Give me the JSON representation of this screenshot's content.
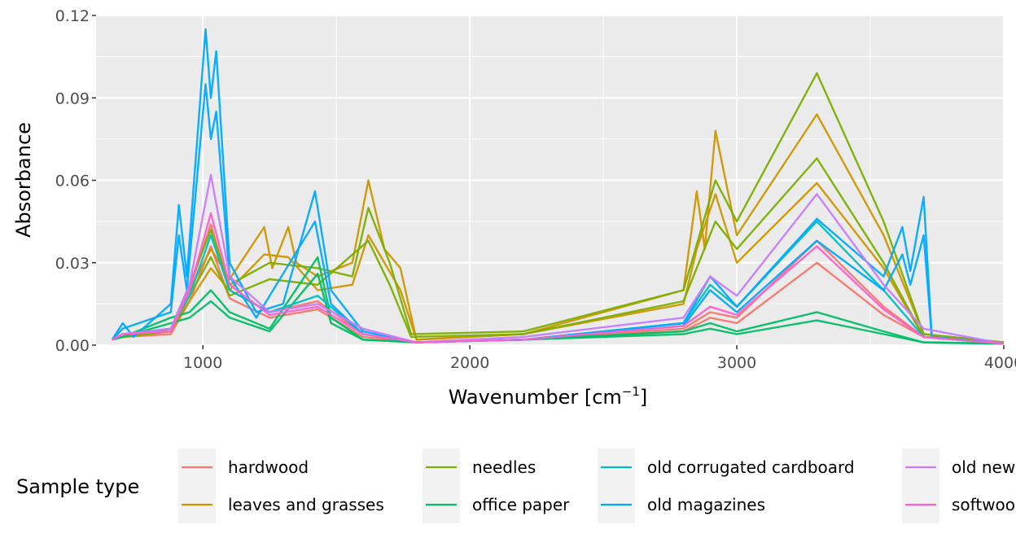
{
  "chart_data": {
    "type": "line",
    "xlabel_main": "Wavenumber [cm",
    "xlabel_sup": "−1",
    "xlabel_end": "]",
    "ylabel": "Absorbance",
    "xlim": [
      600,
      4000
    ],
    "ylim": [
      0,
      0.12
    ],
    "x_ticks": [
      1000,
      2000,
      3000,
      4000
    ],
    "x_tick_labels": [
      "1000",
      "2000",
      "3000",
      "4000"
    ],
    "y_ticks": [
      0,
      0.03,
      0.06,
      0.09,
      0.12
    ],
    "y_tick_labels": [
      "0.00",
      "0.03",
      "0.06",
      "0.09",
      "0.12"
    ],
    "grid": true,
    "legend": {
      "title": "Sample type",
      "placement": "bottom",
      "entries": [
        {
          "label": "hardwood",
          "color": "#F8766D"
        },
        {
          "label": "leaves and grasses",
          "color": "#CD9600"
        },
        {
          "label": "needles",
          "color": "#7CAE00"
        },
        {
          "label": "office paper",
          "color": "#00BE67"
        },
        {
          "label": "old corrugated cardboard",
          "color": "#00BFC4"
        },
        {
          "label": "old magazines",
          "color": "#00A9FF"
        },
        {
          "label": "old newspaper",
          "color": "#C77CFF"
        },
        {
          "label": "softwood",
          "color": "#FF61CC"
        }
      ]
    },
    "series": [
      {
        "color": "#F8766D",
        "values": [
          [
            660,
            0.002
          ],
          [
            700,
            0.004
          ],
          [
            880,
            0.005
          ],
          [
            950,
            0.02
          ],
          [
            1030,
            0.044
          ],
          [
            1100,
            0.02
          ],
          [
            1250,
            0.012
          ],
          [
            1430,
            0.016
          ],
          [
            1600,
            0.004
          ],
          [
            1800,
            0.001
          ],
          [
            2200,
            0.002
          ],
          [
            2800,
            0.006
          ],
          [
            2900,
            0.012
          ],
          [
            3000,
            0.01
          ],
          [
            3300,
            0.038
          ],
          [
            3550,
            0.014
          ],
          [
            3700,
            0.003
          ],
          [
            4000,
            0.0005
          ]
        ]
      },
      {
        "color": "#F8766D",
        "values": [
          [
            660,
            0.002
          ],
          [
            700,
            0.003
          ],
          [
            880,
            0.004
          ],
          [
            950,
            0.016
          ],
          [
            1030,
            0.036
          ],
          [
            1100,
            0.017
          ],
          [
            1250,
            0.01
          ],
          [
            1430,
            0.013
          ],
          [
            1600,
            0.003
          ],
          [
            1800,
            0.001
          ],
          [
            2200,
            0.002
          ],
          [
            2800,
            0.005
          ],
          [
            2900,
            0.01
          ],
          [
            3000,
            0.008
          ],
          [
            3300,
            0.03
          ],
          [
            3550,
            0.011
          ],
          [
            3700,
            0.003
          ],
          [
            4000,
            0.0005
          ]
        ]
      },
      {
        "color": "#CD9600",
        "values": [
          [
            660,
            0.002
          ],
          [
            700,
            0.003
          ],
          [
            880,
            0.006
          ],
          [
            950,
            0.02
          ],
          [
            1030,
            0.035
          ],
          [
            1100,
            0.024
          ],
          [
            1230,
            0.043
          ],
          [
            1260,
            0.028
          ],
          [
            1320,
            0.043
          ],
          [
            1350,
            0.03
          ],
          [
            1430,
            0.025
          ],
          [
            1560,
            0.03
          ],
          [
            1620,
            0.06
          ],
          [
            1680,
            0.035
          ],
          [
            1740,
            0.028
          ],
          [
            1800,
            0.002
          ],
          [
            2200,
            0.004
          ],
          [
            2800,
            0.02
          ],
          [
            2850,
            0.056
          ],
          [
            2880,
            0.035
          ],
          [
            2920,
            0.078
          ],
          [
            3000,
            0.04
          ],
          [
            3300,
            0.084
          ],
          [
            3550,
            0.04
          ],
          [
            3700,
            0.004
          ],
          [
            4000,
            0.001
          ]
        ]
      },
      {
        "color": "#CD9600",
        "values": [
          [
            660,
            0.002
          ],
          [
            700,
            0.003
          ],
          [
            880,
            0.005
          ],
          [
            950,
            0.016
          ],
          [
            1030,
            0.028
          ],
          [
            1100,
            0.02
          ],
          [
            1230,
            0.033
          ],
          [
            1320,
            0.032
          ],
          [
            1430,
            0.02
          ],
          [
            1560,
            0.022
          ],
          [
            1620,
            0.04
          ],
          [
            1740,
            0.02
          ],
          [
            1800,
            0.002
          ],
          [
            2200,
            0.004
          ],
          [
            2800,
            0.015
          ],
          [
            2850,
            0.035
          ],
          [
            2920,
            0.055
          ],
          [
            3000,
            0.03
          ],
          [
            3300,
            0.059
          ],
          [
            3550,
            0.028
          ],
          [
            3700,
            0.003
          ],
          [
            4000,
            0.001
          ]
        ]
      },
      {
        "color": "#7CAE00",
        "values": [
          [
            660,
            0.002
          ],
          [
            700,
            0.003
          ],
          [
            880,
            0.006
          ],
          [
            950,
            0.022
          ],
          [
            1030,
            0.042
          ],
          [
            1100,
            0.022
          ],
          [
            1250,
            0.03
          ],
          [
            1430,
            0.028
          ],
          [
            1560,
            0.025
          ],
          [
            1620,
            0.05
          ],
          [
            1700,
            0.03
          ],
          [
            1780,
            0.004
          ],
          [
            2200,
            0.005
          ],
          [
            2800,
            0.02
          ],
          [
            2920,
            0.06
          ],
          [
            3000,
            0.045
          ],
          [
            3300,
            0.099
          ],
          [
            3550,
            0.045
          ],
          [
            3700,
            0.004
          ],
          [
            4000,
            0.001
          ]
        ]
      },
      {
        "color": "#7CAE00",
        "values": [
          [
            660,
            0.002
          ],
          [
            700,
            0.003
          ],
          [
            880,
            0.005
          ],
          [
            950,
            0.018
          ],
          [
            1030,
            0.032
          ],
          [
            1100,
            0.018
          ],
          [
            1250,
            0.024
          ],
          [
            1430,
            0.022
          ],
          [
            1620,
            0.038
          ],
          [
            1700,
            0.022
          ],
          [
            1780,
            0.003
          ],
          [
            2200,
            0.004
          ],
          [
            2800,
            0.016
          ],
          [
            2920,
            0.045
          ],
          [
            3000,
            0.035
          ],
          [
            3300,
            0.068
          ],
          [
            3550,
            0.03
          ],
          [
            3700,
            0.003
          ],
          [
            4000,
            0.001
          ]
        ]
      },
      {
        "color": "#00BE67",
        "values": [
          [
            660,
            0.002
          ],
          [
            700,
            0.003
          ],
          [
            880,
            0.01
          ],
          [
            950,
            0.012
          ],
          [
            1030,
            0.02
          ],
          [
            1100,
            0.012
          ],
          [
            1250,
            0.006
          ],
          [
            1430,
            0.032
          ],
          [
            1480,
            0.01
          ],
          [
            1600,
            0.002
          ],
          [
            1800,
            0.001
          ],
          [
            2200,
            0.002
          ],
          [
            2800,
            0.005
          ],
          [
            2900,
            0.008
          ],
          [
            3000,
            0.005
          ],
          [
            3300,
            0.012
          ],
          [
            3550,
            0.005
          ],
          [
            3700,
            0.001
          ],
          [
            4000,
            0.0005
          ]
        ]
      },
      {
        "color": "#00BE67",
        "values": [
          [
            660,
            0.002
          ],
          [
            700,
            0.003
          ],
          [
            880,
            0.008
          ],
          [
            950,
            0.01
          ],
          [
            1030,
            0.016
          ],
          [
            1100,
            0.01
          ],
          [
            1250,
            0.005
          ],
          [
            1430,
            0.026
          ],
          [
            1480,
            0.008
          ],
          [
            1600,
            0.002
          ],
          [
            1800,
            0.001
          ],
          [
            2200,
            0.002
          ],
          [
            2800,
            0.004
          ],
          [
            2900,
            0.006
          ],
          [
            3000,
            0.004
          ],
          [
            3300,
            0.009
          ],
          [
            3550,
            0.004
          ],
          [
            3700,
            0.001
          ],
          [
            4000,
            0.0005
          ]
        ]
      },
      {
        "color": "#00BFC4",
        "values": [
          [
            660,
            0.002
          ],
          [
            700,
            0.004
          ],
          [
            880,
            0.006
          ],
          [
            950,
            0.018
          ],
          [
            1030,
            0.04
          ],
          [
            1100,
            0.02
          ],
          [
            1250,
            0.012
          ],
          [
            1430,
            0.018
          ],
          [
            1600,
            0.004
          ],
          [
            1800,
            0.001
          ],
          [
            2200,
            0.002
          ],
          [
            2800,
            0.008
          ],
          [
            2900,
            0.022
          ],
          [
            3000,
            0.014
          ],
          [
            3300,
            0.045
          ],
          [
            3550,
            0.02
          ],
          [
            3700,
            0.003
          ],
          [
            4000,
            0.0005
          ]
        ]
      },
      {
        "color": "#00A9FF",
        "values": [
          [
            660,
            0.002
          ],
          [
            700,
            0.008
          ],
          [
            740,
            0.003
          ],
          [
            880,
            0.015
          ],
          [
            910,
            0.051
          ],
          [
            940,
            0.025
          ],
          [
            1010,
            0.115
          ],
          [
            1030,
            0.09
          ],
          [
            1050,
            0.107
          ],
          [
            1100,
            0.03
          ],
          [
            1200,
            0.012
          ],
          [
            1300,
            0.015
          ],
          [
            1420,
            0.056
          ],
          [
            1480,
            0.02
          ],
          [
            1600,
            0.005
          ],
          [
            1800,
            0.001
          ],
          [
            2200,
            0.002
          ],
          [
            2800,
            0.008
          ],
          [
            2900,
            0.025
          ],
          [
            3000,
            0.014
          ],
          [
            3300,
            0.046
          ],
          [
            3550,
            0.025
          ],
          [
            3620,
            0.043
          ],
          [
            3650,
            0.027
          ],
          [
            3700,
            0.054
          ],
          [
            3730,
            0.003
          ],
          [
            4000,
            0.0005
          ]
        ]
      },
      {
        "color": "#00A9FF",
        "values": [
          [
            660,
            0.002
          ],
          [
            700,
            0.006
          ],
          [
            880,
            0.012
          ],
          [
            910,
            0.04
          ],
          [
            940,
            0.02
          ],
          [
            1010,
            0.095
          ],
          [
            1030,
            0.075
          ],
          [
            1050,
            0.085
          ],
          [
            1100,
            0.025
          ],
          [
            1200,
            0.01
          ],
          [
            1420,
            0.045
          ],
          [
            1480,
            0.015
          ],
          [
            1600,
            0.004
          ],
          [
            1800,
            0.001
          ],
          [
            2200,
            0.002
          ],
          [
            2800,
            0.007
          ],
          [
            2900,
            0.02
          ],
          [
            3000,
            0.012
          ],
          [
            3300,
            0.038
          ],
          [
            3550,
            0.02
          ],
          [
            3620,
            0.033
          ],
          [
            3650,
            0.022
          ],
          [
            3700,
            0.04
          ],
          [
            3730,
            0.003
          ],
          [
            4000,
            0.0005
          ]
        ]
      },
      {
        "color": "#C77CFF",
        "values": [
          [
            660,
            0.002
          ],
          [
            700,
            0.004
          ],
          [
            880,
            0.006
          ],
          [
            950,
            0.022
          ],
          [
            1030,
            0.062
          ],
          [
            1100,
            0.025
          ],
          [
            1250,
            0.012
          ],
          [
            1430,
            0.015
          ],
          [
            1600,
            0.006
          ],
          [
            1800,
            0.001
          ],
          [
            2200,
            0.003
          ],
          [
            2800,
            0.01
          ],
          [
            2900,
            0.025
          ],
          [
            3000,
            0.018
          ],
          [
            3300,
            0.055
          ],
          [
            3550,
            0.022
          ],
          [
            3700,
            0.006
          ],
          [
            4000,
            0.0005
          ]
        ]
      },
      {
        "color": "#FF61CC",
        "values": [
          [
            660,
            0.002
          ],
          [
            700,
            0.004
          ],
          [
            880,
            0.005
          ],
          [
            950,
            0.02
          ],
          [
            1030,
            0.048
          ],
          [
            1100,
            0.022
          ],
          [
            1250,
            0.011
          ],
          [
            1430,
            0.014
          ],
          [
            1600,
            0.004
          ],
          [
            1800,
            0.001
          ],
          [
            2200,
            0.002
          ],
          [
            2800,
            0.007
          ],
          [
            2900,
            0.014
          ],
          [
            3000,
            0.011
          ],
          [
            3300,
            0.036
          ],
          [
            3550,
            0.013
          ],
          [
            3700,
            0.003
          ],
          [
            4000,
            0.0005
          ]
        ]
      }
    ]
  }
}
